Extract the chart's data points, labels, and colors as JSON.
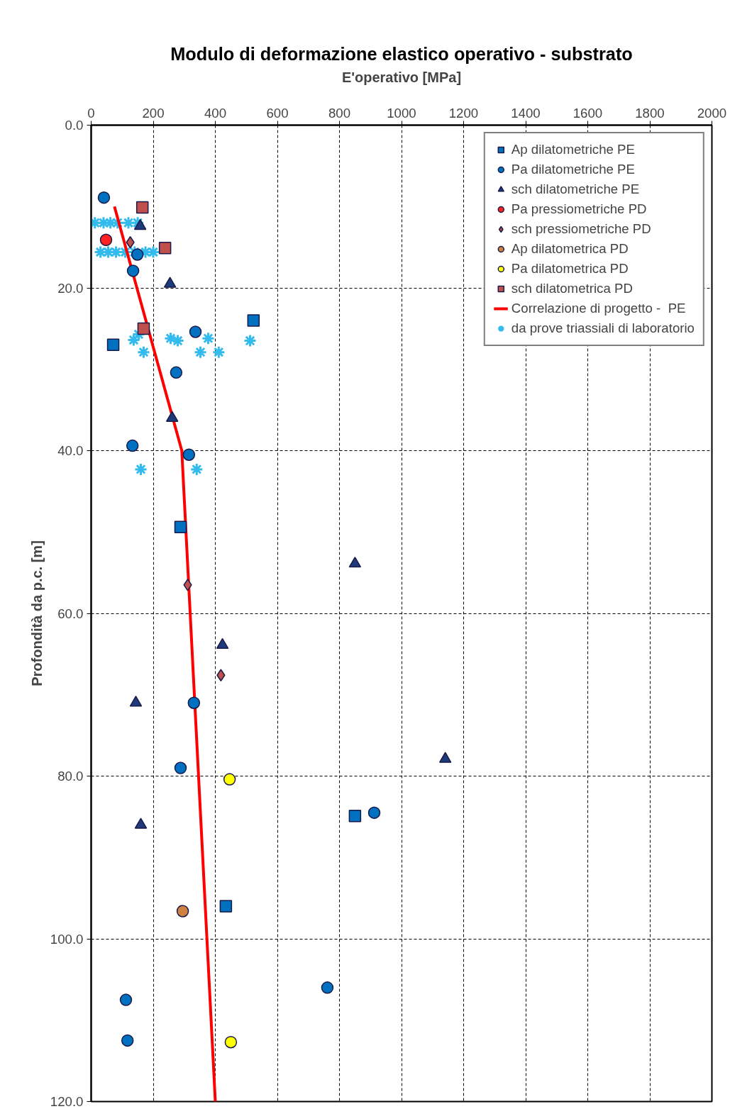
{
  "chart_data": {
    "type": "scatter",
    "title": "Modulo di deformazione elastico operativo - substrato",
    "xlabel": "E'operativo [MPa]",
    "ylabel": "Profondità da p.c. [m]",
    "xlim": [
      0,
      2000
    ],
    "xticks": [
      0,
      200,
      400,
      600,
      800,
      1000,
      1200,
      1400,
      1600,
      1800,
      2000
    ],
    "ylim": [
      120,
      0
    ],
    "yticks": [
      {
        "value": 0,
        "label": "0.0"
      },
      {
        "value": 20,
        "label": "20.0"
      },
      {
        "value": 40,
        "label": "40.0"
      },
      {
        "value": 60,
        "label": "60.0"
      },
      {
        "value": 80,
        "label": "80.0"
      },
      {
        "value": 100,
        "label": "100.0"
      },
      {
        "value": 120,
        "label": "120.0"
      }
    ],
    "grid": true,
    "legend": "top right",
    "series": [
      {
        "name": "Ap dilatometriche PE",
        "marker": "square",
        "color": "#0070c0",
        "x": [
          523,
          71,
          288,
          850,
          434
        ],
        "values": [
          24.0,
          27.0,
          49.4,
          84.9,
          96.0
        ]
      },
      {
        "name": "Pa dilatometriche PE",
        "marker": "circle",
        "color": "#0070c0",
        "x": [
          41,
          149,
          135,
          336,
          274,
          133,
          315,
          331,
          288,
          912,
          761,
          112,
          117
        ],
        "values": [
          8.9,
          15.9,
          17.9,
          25.4,
          30.4,
          39.4,
          40.5,
          71.0,
          79.0,
          84.5,
          106.0,
          107.5,
          112.5
        ]
      },
      {
        "name": "sch dilatometriche PE",
        "marker": "triangle",
        "color": "#1f3a7a",
        "x": [
          158,
          254,
          261,
          850,
          423,
          144,
          1141,
          160
        ],
        "values": [
          12.4,
          19.5,
          36.0,
          53.9,
          63.9,
          71.0,
          77.9,
          86.0
        ]
      },
      {
        "name": "Pa pressiometriche PD",
        "marker": "circle",
        "color": "#ff2020",
        "x": [
          48
        ],
        "values": [
          14.1
        ]
      },
      {
        "name": "sch pressiometriche PD",
        "marker": "diamond",
        "color": "#c0504d",
        "x": [
          126,
          311,
          418
        ],
        "values": [
          14.4,
          56.5,
          67.6
        ]
      },
      {
        "name": "Ap dilatometrica PD",
        "marker": "circle",
        "color": "#d08040",
        "x": [
          295
        ],
        "values": [
          96.6
        ]
      },
      {
        "name": "Pa dilatometrica PD",
        "marker": "circle",
        "color": "#ffff00",
        "x": [
          446,
          450
        ],
        "values": [
          80.4,
          112.7
        ]
      },
      {
        "name": "sch dilatometrica PD",
        "marker": "square",
        "color": "#c0504d",
        "x": [
          165,
          238,
          169
        ],
        "values": [
          10.1,
          15.1,
          25.0
        ]
      },
      {
        "name": "Correlazione di progetto -  PE",
        "type": "line",
        "marker": "none",
        "line_style": "solid",
        "color": "#ff0000",
        "x": [
          75,
          292,
          400
        ],
        "values": [
          10,
          40,
          120
        ]
      },
      {
        "name": "da prove triassiali di laboratorio",
        "marker": "cross",
        "color": "#33bbee",
        "x": [
          12,
          40,
          62,
          85,
          120,
          150,
          30,
          55,
          80,
          110,
          140,
          175,
          200,
          137,
          153,
          169,
          256,
          279,
          352,
          377,
          411,
          512,
          160,
          340
        ],
        "values": [
          12.0,
          12.0,
          12.0,
          12.0,
          12.0,
          12.0,
          15.6,
          15.6,
          15.6,
          15.6,
          15.6,
          15.6,
          15.6,
          26.4,
          25.7,
          27.9,
          26.2,
          26.5,
          27.9,
          26.2,
          27.9,
          26.5,
          42.3,
          42.3
        ]
      }
    ]
  }
}
